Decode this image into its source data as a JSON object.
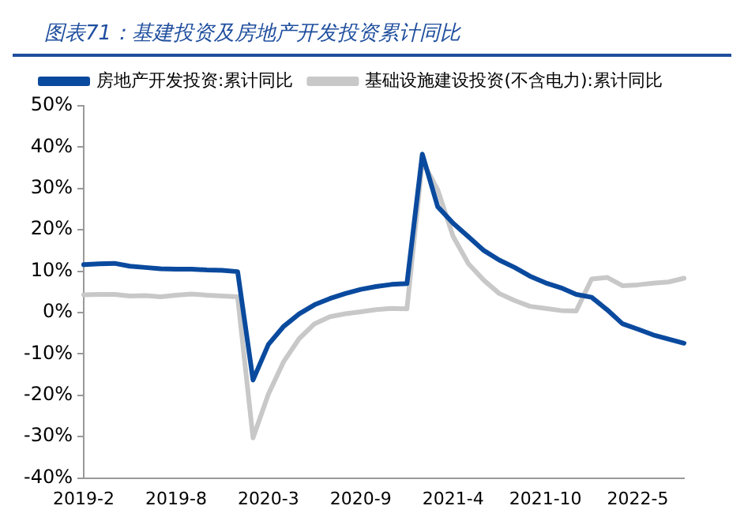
{
  "chart_data": {
    "type": "line",
    "title": "图表71：基建投资及房地产开发投资累计同比",
    "categories": [
      "2019-2",
      null,
      null,
      null,
      null,
      null,
      "2019-8",
      null,
      null,
      null,
      null,
      null,
      "2020-3",
      null,
      null,
      null,
      null,
      null,
      "2020-9",
      null,
      null,
      null,
      null,
      null,
      "2021-4",
      null,
      null,
      null,
      null,
      null,
      "2021-10",
      null,
      null,
      null,
      null,
      null,
      "2022-5",
      null,
      null,
      null
    ],
    "series": [
      {
        "name": "房地产开发投资:累计同比",
        "color": "#0a4a9e",
        "values": [
          11.6,
          11.8,
          11.9,
          11.2,
          10.9,
          10.6,
          10.5,
          10.5,
          10.3,
          10.2,
          9.9,
          -16.3,
          -7.7,
          -3.3,
          -0.3,
          1.9,
          3.4,
          4.6,
          5.6,
          6.3,
          6.8,
          7.0,
          38.3,
          25.6,
          21.6,
          18.3,
          15.0,
          12.7,
          10.9,
          8.8,
          7.2,
          6.0,
          4.4,
          3.7,
          0.7,
          -2.7,
          -4.0,
          -5.4,
          -6.4,
          -7.4
        ]
      },
      {
        "name": "基础设施建设投资(不含电力):累计同比",
        "color": "#c8c8c8",
        "values": [
          4.3,
          4.4,
          4.4,
          4.0,
          4.1,
          3.8,
          4.2,
          4.5,
          4.2,
          4.0,
          3.8,
          -30.3,
          -19.7,
          -11.8,
          -6.3,
          -2.7,
          -1.0,
          -0.3,
          0.2,
          0.7,
          1.0,
          0.9,
          36.6,
          29.7,
          18.4,
          11.8,
          7.8,
          4.6,
          2.9,
          1.5,
          1.0,
          0.5,
          0.4,
          8.1,
          8.5,
          6.5,
          6.7,
          7.1,
          7.4,
          8.3
        ]
      }
    ],
    "ylim": [
      -40,
      50
    ],
    "yticks": [
      {
        "value": -40,
        "label": "-40%"
      },
      {
        "value": -30,
        "label": "-30%"
      },
      {
        "value": -20,
        "label": "-20%"
      },
      {
        "value": -10,
        "label": "-10%"
      },
      {
        "value": 0,
        "label": "0%"
      },
      {
        "value": 10,
        "label": "10%"
      },
      {
        "value": 20,
        "label": "20%"
      },
      {
        "value": 30,
        "label": "30%"
      },
      {
        "value": 40,
        "label": "40%"
      },
      {
        "value": 50,
        "label": "50%"
      }
    ],
    "grid": false,
    "legend": "top",
    "marker": "none",
    "line_style": "solid"
  }
}
